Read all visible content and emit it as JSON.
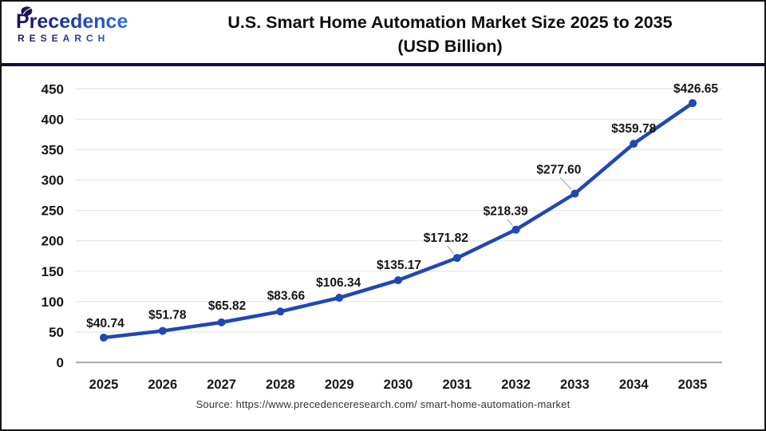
{
  "header": {
    "logo": {
      "name": "Precedence",
      "subname": "RESEARCH"
    },
    "title_line1": "U.S. Smart Home Automation Market Size 2025 to 2035",
    "title_line2": "(USD Billion)"
  },
  "chart_data": {
    "type": "line",
    "title": "U.S. Smart Home Automation Market Size 2025 to 2035 (USD Billion)",
    "categories": [
      "2025",
      "2026",
      "2027",
      "2028",
      "2029",
      "2030",
      "2031",
      "2032",
      "2033",
      "2034",
      "2035"
    ],
    "series": [
      {
        "name": "U.S. Smart Home Automation Market Size (USD Billion)",
        "values": [
          40.74,
          51.78,
          65.82,
          83.66,
          106.34,
          135.17,
          171.82,
          218.39,
          277.6,
          359.78,
          426.65
        ],
        "point_labels": [
          "$40.74",
          "$51.78",
          "$65.82",
          "$83.66",
          "$106.34",
          "$135.17",
          "$171.82",
          "$218.39",
          "$277.60",
          "$359.78",
          "$426.65"
        ]
      }
    ],
    "xlabel": "",
    "ylabel": "",
    "ylim": [
      0,
      450
    ],
    "yticks": [
      0,
      50,
      100,
      150,
      200,
      250,
      300,
      350,
      400,
      450
    ],
    "grid": true,
    "legend": false,
    "colors": {
      "line": "#2148b0",
      "marker": "#2148b0",
      "grid": "#e9e9e9",
      "axis_line": "#b0b0b0",
      "tick_text": "#161616",
      "label_text": "#161616",
      "leader_line": "#a8a8a8"
    }
  },
  "footer": {
    "source": "Source: https://www.precedenceresearch.com/ smart-home-automation-market"
  }
}
